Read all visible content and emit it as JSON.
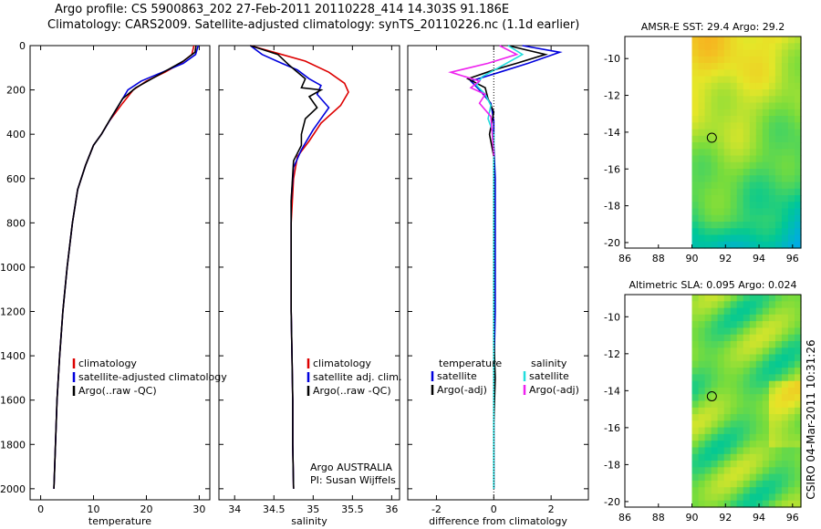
{
  "header": {
    "title_line1": "Argo profile: CS 5900863_202 27-Feb-2011 20110228_414 14.303S 91.186E",
    "title_line2": "Climatology: CARS2009. Satellite-adjusted climatology: synTS_20110226.nc (1.1d earlier)"
  },
  "footer": {
    "stamp": "CSIRO 04-Mar-2011 10:31:26"
  },
  "colors": {
    "climatology": "#dd0000",
    "satellite": "#0000dd",
    "argo": "#000000",
    "sat_salinity_diff": "#22dddd",
    "argo_salinity_diff": "#ee22ee"
  },
  "chart_data": [
    {
      "type": "line",
      "panel": "temperature",
      "xlabel": "temperature",
      "ylabel": "",
      "xlim": [
        -2,
        32
      ],
      "ylim": [
        2050,
        0
      ],
      "xticks": [
        0,
        10,
        20,
        30
      ],
      "yticks": [
        0,
        200,
        400,
        600,
        800,
        1000,
        1200,
        1400,
        1600,
        1800,
        2000
      ],
      "legend": [
        "climatology",
        "satellite-adjusted climatology",
        "Argo(..raw -QC)"
      ],
      "series": [
        {
          "name": "climatology",
          "color": "#dd0000",
          "points": [
            [
              29.0,
              0
            ],
            [
              28.6,
              40
            ],
            [
              26.5,
              80
            ],
            [
              23.5,
              120
            ],
            [
              20,
              160
            ],
            [
              17.5,
              200
            ],
            [
              15.5,
              260
            ],
            [
              13,
              340
            ],
            [
              11.5,
              400
            ],
            [
              10,
              450
            ],
            [
              8.5,
              540
            ],
            [
              7,
              650
            ],
            [
              6,
              800
            ],
            [
              5,
              1000
            ],
            [
              4.2,
              1200
            ],
            [
              3.6,
              1400
            ],
            [
              3.1,
              1600
            ],
            [
              2.8,
              1800
            ],
            [
              2.5,
              2000
            ]
          ]
        },
        {
          "name": "satellite-adjusted climatology",
          "color": "#0000dd",
          "points": [
            [
              29.8,
              0
            ],
            [
              29.3,
              40
            ],
            [
              27,
              80
            ],
            [
              23,
              120
            ],
            [
              19,
              160
            ],
            [
              16.5,
              200
            ],
            [
              15,
              260
            ],
            [
              13,
              340
            ],
            [
              11.5,
              400
            ],
            [
              10,
              450
            ],
            [
              8.5,
              540
            ],
            [
              7,
              650
            ],
            [
              6,
              800
            ],
            [
              5,
              1000
            ],
            [
              4.2,
              1200
            ],
            [
              3.6,
              1400
            ],
            [
              3.1,
              1600
            ],
            [
              2.8,
              1800
            ],
            [
              2.5,
              2000
            ]
          ]
        },
        {
          "name": "Argo(..raw -QC)",
          "color": "#000000",
          "points": [
            [
              29.4,
              0
            ],
            [
              29.2,
              30
            ],
            [
              27,
              70
            ],
            [
              24,
              110
            ],
            [
              21,
              150
            ],
            [
              18,
              190
            ],
            [
              15.5,
              240
            ],
            [
              13.2,
              330
            ],
            [
              11.5,
              400
            ],
            [
              10,
              450
            ],
            [
              8.5,
              540
            ],
            [
              7,
              650
            ],
            [
              6,
              800
            ],
            [
              5,
              1000
            ],
            [
              4.2,
              1200
            ],
            [
              3.6,
              1400
            ],
            [
              3.1,
              1600
            ],
            [
              2.8,
              1800
            ],
            [
              2.5,
              2000
            ]
          ]
        }
      ]
    },
    {
      "type": "line",
      "panel": "salinity",
      "xlabel": "salinity",
      "xlim": [
        33.8,
        36.1
      ],
      "ylim": [
        2050,
        0
      ],
      "xticks": [
        34,
        34.5,
        35,
        35.5,
        36
      ],
      "legend": [
        "climatology",
        "satellite adj. clim.",
        "Argo(..raw -QC)"
      ],
      "annotation": [
        "Argo AUSTRALIA",
        "PI: Susan Wijffels"
      ],
      "series": [
        {
          "name": "climatology",
          "color": "#dd0000",
          "points": [
            [
              34.2,
              0
            ],
            [
              34.5,
              30
            ],
            [
              34.9,
              70
            ],
            [
              35.2,
              120
            ],
            [
              35.4,
              170
            ],
            [
              35.45,
              210
            ],
            [
              35.35,
              270
            ],
            [
              35.1,
              350
            ],
            [
              34.95,
              430
            ],
            [
              34.8,
              500
            ],
            [
              34.75,
              600
            ],
            [
              34.72,
              800
            ],
            [
              34.72,
              1000
            ],
            [
              34.72,
              1200
            ],
            [
              34.73,
              1400
            ],
            [
              34.74,
              1600
            ],
            [
              34.74,
              1800
            ],
            [
              34.75,
              2000
            ]
          ]
        },
        {
          "name": "satellite adj. clim.",
          "color": "#0000dd",
          "points": [
            [
              34.2,
              0
            ],
            [
              34.35,
              40
            ],
            [
              34.6,
              80
            ],
            [
              34.8,
              110
            ],
            [
              34.95,
              150
            ],
            [
              35.1,
              180
            ],
            [
              35.05,
              220
            ],
            [
              35.2,
              280
            ],
            [
              35.0,
              380
            ],
            [
              34.85,
              470
            ],
            [
              34.75,
              550
            ],
            [
              34.72,
              700
            ],
            [
              34.72,
              1000
            ],
            [
              34.72,
              1200
            ],
            [
              34.73,
              1400
            ],
            [
              34.74,
              1600
            ],
            [
              34.74,
              1800
            ],
            [
              34.75,
              2000
            ]
          ]
        },
        {
          "name": "Argo(..raw -QC)",
          "color": "#000000",
          "points": [
            [
              34.2,
              0
            ],
            [
              34.55,
              40
            ],
            [
              34.7,
              90
            ],
            [
              34.9,
              150
            ],
            [
              34.85,
              190
            ],
            [
              35.1,
              200
            ],
            [
              34.95,
              230
            ],
            [
              35.05,
              280
            ],
            [
              34.9,
              330
            ],
            [
              34.85,
              400
            ],
            [
              34.85,
              450
            ],
            [
              34.75,
              520
            ],
            [
              34.72,
              700
            ],
            [
              34.72,
              1000
            ],
            [
              34.72,
              1200
            ],
            [
              34.73,
              1400
            ],
            [
              34.74,
              1600
            ],
            [
              34.74,
              1800
            ],
            [
              34.75,
              2000
            ]
          ]
        }
      ]
    },
    {
      "type": "line",
      "panel": "difference",
      "xlabel": "difference from climatology",
      "xlim": [
        -3,
        3.3
      ],
      "ylim": [
        2050,
        0
      ],
      "xticks": [
        -2,
        0,
        2
      ],
      "legend_left_title": "temperature",
      "legend_right_title": "salinity",
      "legend": [
        "satellite",
        "Argo(-adj)",
        "satellite",
        "Argo(-adj)"
      ],
      "series": [
        {
          "name": "temperature satellite",
          "color": "#0000dd",
          "points": [
            [
              1.0,
              0
            ],
            [
              2.3,
              30
            ],
            [
              1.2,
              80
            ],
            [
              0.2,
              120
            ],
            [
              -0.8,
              160
            ],
            [
              -0.5,
              200
            ],
            [
              -0.1,
              260
            ],
            [
              0,
              340
            ],
            [
              0,
              450
            ],
            [
              0.05,
              600
            ],
            [
              0.05,
              900
            ],
            [
              0.05,
              1200
            ],
            [
              0,
              1500
            ],
            [
              0,
              2000
            ]
          ]
        },
        {
          "name": "temperature Argo(-adj)",
          "color": "#000000",
          "points": [
            [
              0.5,
              0
            ],
            [
              1.8,
              40
            ],
            [
              0.8,
              80
            ],
            [
              0,
              110
            ],
            [
              -0.9,
              150
            ],
            [
              -0.3,
              190
            ],
            [
              -0.2,
              240
            ],
            [
              0,
              300
            ],
            [
              -0.15,
              400
            ],
            [
              0,
              500
            ],
            [
              0,
              800
            ],
            [
              0,
              1000
            ],
            [
              0,
              1300
            ],
            [
              0.05,
              1500
            ],
            [
              0,
              1700
            ],
            [
              0,
              2000
            ]
          ]
        },
        {
          "name": "salinity satellite",
          "color": "#22dddd",
          "points": [
            [
              0.5,
              0
            ],
            [
              1.0,
              40
            ],
            [
              0.3,
              90
            ],
            [
              -0.4,
              140
            ],
            [
              -0.6,
              180
            ],
            [
              -0.3,
              220
            ],
            [
              -0.1,
              270
            ],
            [
              -0.2,
              330
            ],
            [
              0,
              400
            ],
            [
              0,
              500
            ],
            [
              0,
              700
            ],
            [
              0,
              1000
            ],
            [
              0,
              1300
            ],
            [
              0,
              1600
            ],
            [
              0,
              2000
            ]
          ]
        },
        {
          "name": "salinity Argo(-adj)",
          "color": "#ee22ee",
          "points": [
            [
              0.2,
              0
            ],
            [
              0.8,
              40
            ],
            [
              -0.2,
              80
            ],
            [
              -1.5,
              120
            ],
            [
              -0.5,
              160
            ],
            [
              -0.8,
              190
            ],
            [
              -0.3,
              220
            ],
            [
              -0.5,
              260
            ],
            [
              -0.1,
              320
            ],
            [
              -0.05,
              400
            ],
            [
              0,
              500
            ]
          ]
        }
      ]
    },
    {
      "type": "heatmap",
      "panel": "sst",
      "title": "AMSR-E SST: 29.4 Argo: 29.2",
      "xlim": [
        86,
        96.5
      ],
      "ylim": [
        -20.3,
        -8.8
      ],
      "xticks": [
        86,
        88,
        90,
        92,
        94,
        96
      ],
      "yticks": [
        -10,
        -12,
        -14,
        -16,
        -18,
        -20
      ],
      "data_lon_start": 90,
      "profile_position": [
        91.186,
        -14.303
      ]
    },
    {
      "type": "heatmap",
      "panel": "sla",
      "title": "Altimetric SLA: 0.095 Argo: 0.024",
      "xlim": [
        86,
        96.5
      ],
      "ylim": [
        -20.3,
        -8.8
      ],
      "xticks": [
        86,
        88,
        90,
        92,
        94,
        96
      ],
      "yticks": [
        -10,
        -12,
        -14,
        -16,
        -18,
        -20
      ],
      "data_lon_start": 90,
      "profile_position": [
        91.186,
        -14.303
      ]
    }
  ]
}
